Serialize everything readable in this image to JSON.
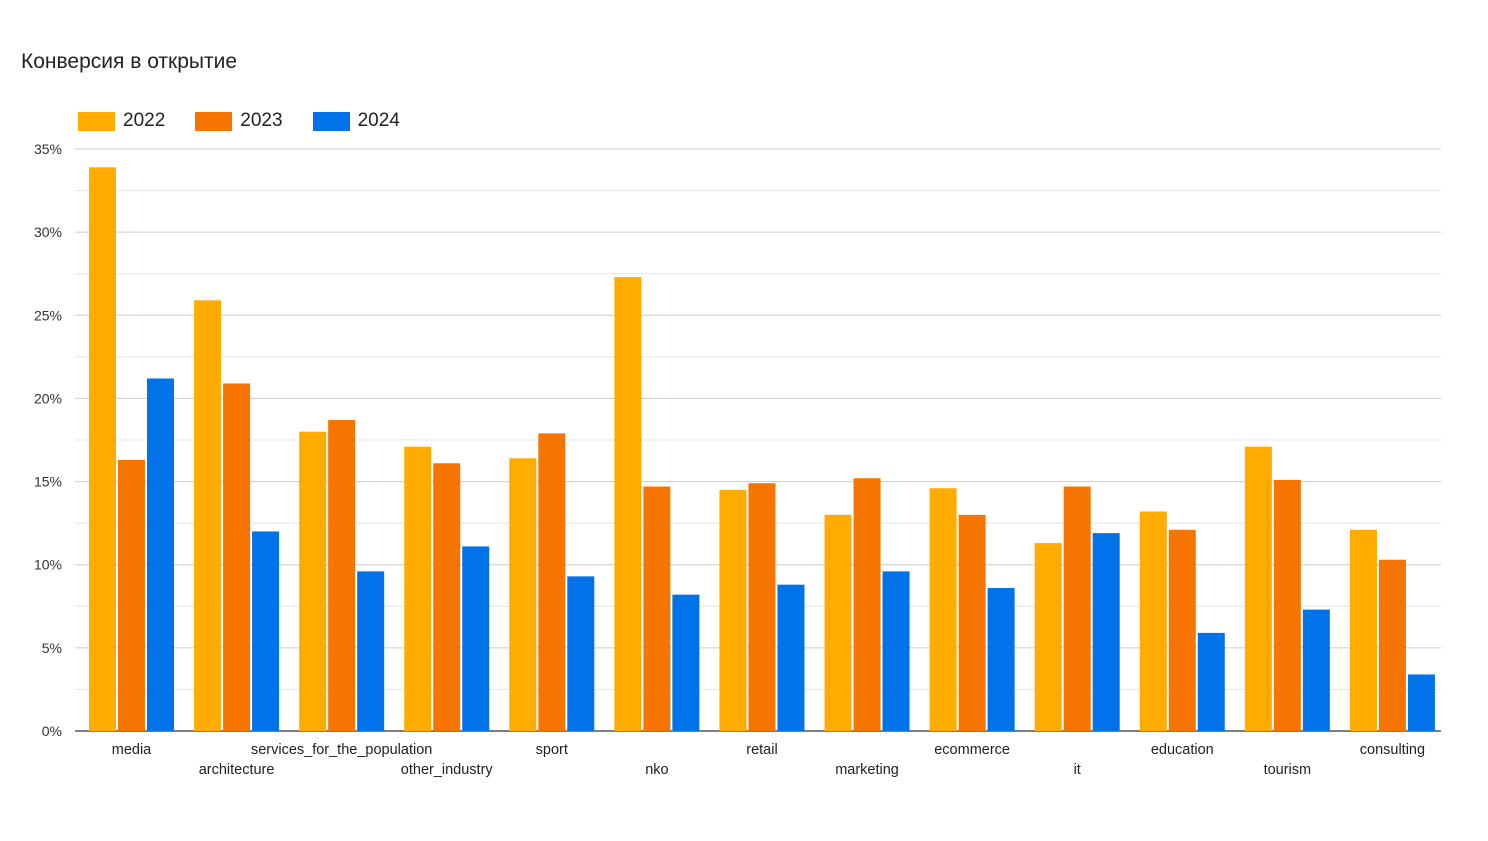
{
  "chart_data": {
    "type": "bar",
    "title": "Конверсия в открытие",
    "xlabel": "",
    "ylabel": "",
    "ylim": [
      0,
      35
    ],
    "yticks": [
      "0%",
      "5%",
      "10%",
      "15%",
      "20%",
      "25%",
      "30%",
      "35%"
    ],
    "grid": true,
    "legend_position": "top-left",
    "categories": [
      "media",
      "architecture",
      "services_for_the_population",
      "other_industry",
      "sport",
      "nko",
      "retail",
      "marketing",
      "ecommerce",
      "it",
      "education",
      "tourism",
      "consulting"
    ],
    "series": [
      {
        "name": "2022",
        "color": "#ffab00",
        "values": [
          33.9,
          25.9,
          18.0,
          17.1,
          16.4,
          27.3,
          14.5,
          13.0,
          14.6,
          11.3,
          13.2,
          17.1,
          12.1
        ]
      },
      {
        "name": "2023",
        "color": "#f67500",
        "values": [
          16.3,
          20.9,
          18.7,
          16.1,
          17.9,
          14.7,
          14.9,
          15.2,
          13.0,
          14.7,
          12.1,
          15.1,
          10.3
        ]
      },
      {
        "name": "2024",
        "color": "#0073ea",
        "values": [
          21.2,
          12.0,
          9.6,
          11.1,
          9.3,
          8.2,
          8.8,
          9.6,
          8.6,
          11.9,
          5.9,
          7.3,
          3.4
        ]
      }
    ]
  }
}
